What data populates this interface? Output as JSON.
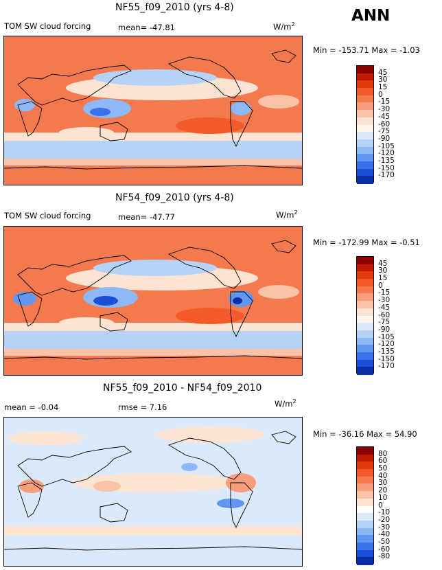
{
  "season": "ANN",
  "panels": [
    {
      "title": "NF55_f09_2010 (yrs 4-8)",
      "left_label": "TOM SW cloud forcing",
      "mean_text": "mean=  -47.81",
      "units_base": "W/m",
      "units_sup": "2",
      "minmax": "Min = -153.71 Max =   -1.03",
      "base_color": "#f4794f",
      "colorbar": {
        "labels": [
          "45",
          "30",
          "15",
          "0",
          "-15",
          "-30",
          "-45",
          "-60",
          "-75",
          "-90",
          "-105",
          "-120",
          "-135",
          "-150",
          "-170"
        ],
        "colors": [
          "#8b0000",
          "#c21a00",
          "#e13a0c",
          "#f25a2a",
          "#f4794f",
          "#f79e7c",
          "#fac3a8",
          "#fde3d2",
          "#fff6ee",
          "#dbe9fa",
          "#b6d2f7",
          "#8db8f5",
          "#6197f0",
          "#3a72eb",
          "#1b4fd6",
          "#0a2ea6"
        ]
      }
    },
    {
      "title": "NF54_f09_2010 (yrs 4-8)",
      "left_label": "TOM SW cloud forcing",
      "mean_text": "mean=  -47.77",
      "units_base": "W/m",
      "units_sup": "2",
      "minmax": "Min = -172.99 Max =   -0.51",
      "base_color": "#f4794f",
      "colorbar": {
        "labels": [
          "45",
          "30",
          "15",
          "0",
          "-15",
          "-30",
          "-45",
          "-60",
          "-75",
          "-90",
          "-105",
          "-120",
          "-135",
          "-150",
          "-170"
        ],
        "colors": [
          "#8b0000",
          "#c21a00",
          "#e13a0c",
          "#f25a2a",
          "#f4794f",
          "#f79e7c",
          "#fac3a8",
          "#fde3d2",
          "#fff6ee",
          "#dbe9fa",
          "#b6d2f7",
          "#8db8f5",
          "#6197f0",
          "#3a72eb",
          "#1b4fd6",
          "#0a2ea6"
        ]
      }
    },
    {
      "title": "NF55_f09_2010 - NF54_f09_2010",
      "left_label": "mean =   -0.04",
      "mean_text": "rmse =    7.16",
      "units_base": "W/m",
      "units_sup": "2",
      "minmax": "Min = -36.16 Max =  54.90",
      "base_color": "#dbe9fa",
      "colorbar": {
        "labels": [
          "80",
          "60",
          "50",
          "40",
          "30",
          "20",
          "10",
          "0",
          "-10",
          "-20",
          "-30",
          "-40",
          "-50",
          "-60",
          "-80"
        ],
        "colors": [
          "#8b0000",
          "#c21a00",
          "#e13a0c",
          "#f25a2a",
          "#f4794f",
          "#f79e7c",
          "#fac3a8",
          "#fde3d2",
          "#ffffff",
          "#dbe9fa",
          "#b6d2f7",
          "#8db8f5",
          "#6197f0",
          "#3a72eb",
          "#1b4fd6",
          "#0a2ea6"
        ]
      }
    }
  ],
  "chart_data": [
    {
      "type": "heatmap",
      "title": "NF55_f09_2010 (yrs 4-8)",
      "variable": "TOM SW cloud forcing",
      "units": "W/m2",
      "mean": -47.81,
      "min": -153.71,
      "max": -1.03,
      "contour_levels": [
        45,
        30,
        15,
        0,
        -15,
        -30,
        -45,
        -60,
        -75,
        -90,
        -105,
        -120,
        -135,
        -150,
        -170
      ],
      "season": "ANN"
    },
    {
      "type": "heatmap",
      "title": "NF54_f09_2010 (yrs 4-8)",
      "variable": "TOM SW cloud forcing",
      "units": "W/m2",
      "mean": -47.77,
      "min": -172.99,
      "max": -0.51,
      "contour_levels": [
        45,
        30,
        15,
        0,
        -15,
        -30,
        -45,
        -60,
        -75,
        -90,
        -105,
        -120,
        -135,
        -150,
        -170
      ],
      "season": "ANN"
    },
    {
      "type": "heatmap",
      "title": "NF55_f09_2010 - NF54_f09_2010",
      "units": "W/m2",
      "mean": -0.04,
      "rmse": 7.16,
      "min": -36.16,
      "max": 54.9,
      "contour_levels": [
        80,
        60,
        50,
        40,
        30,
        20,
        10,
        0,
        -10,
        -20,
        -30,
        -40,
        -50,
        -60,
        -80
      ],
      "season": "ANN"
    }
  ]
}
